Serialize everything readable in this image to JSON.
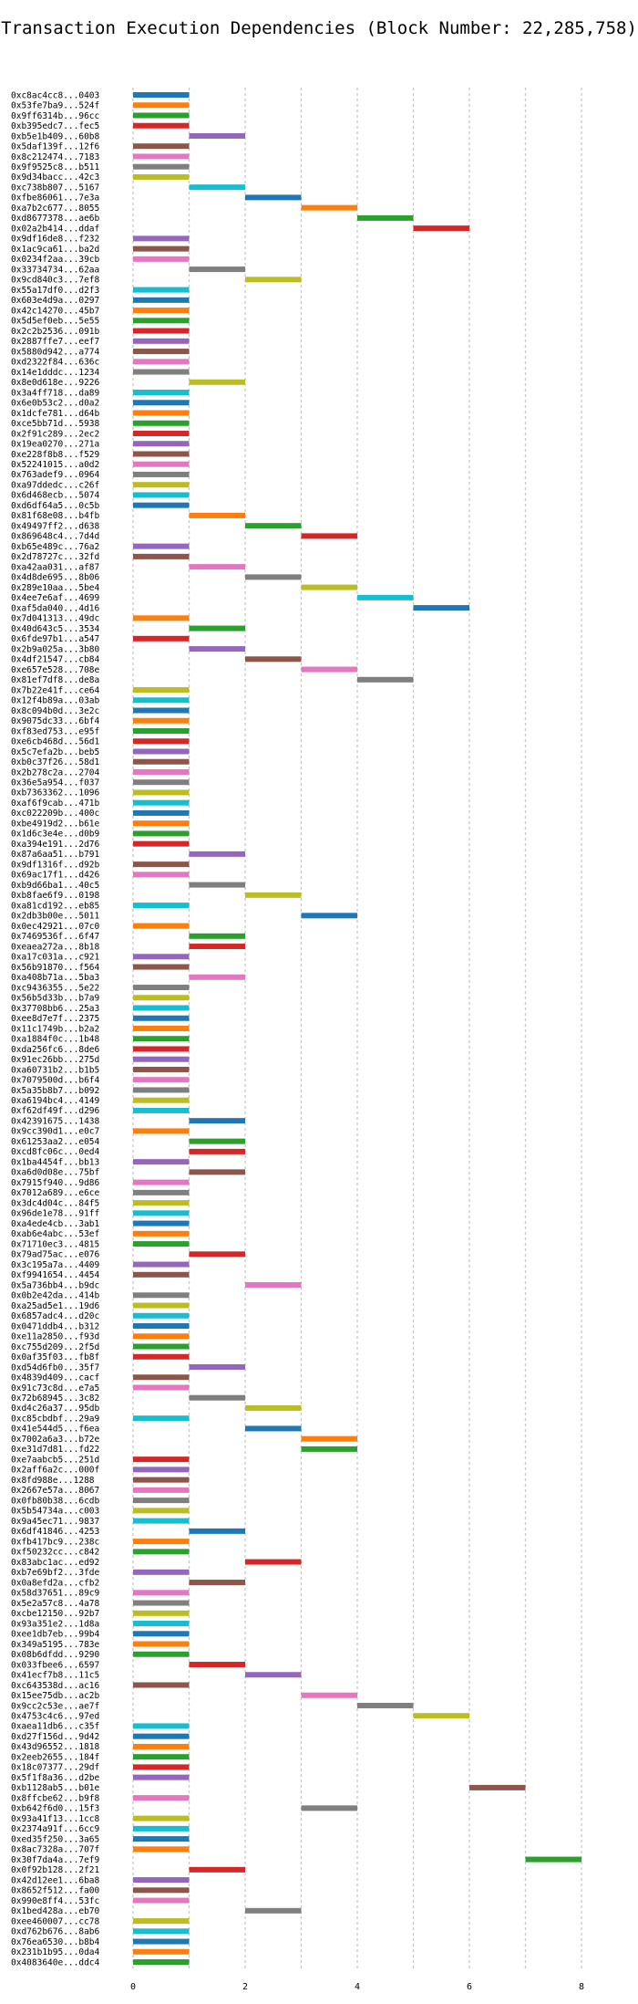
{
  "chart_data": {
    "type": "gantt",
    "title": "Transaction Execution Dependencies (Block Number: 22,285,758)",
    "xlim": [
      0,
      8
    ],
    "xticks": [
      "0",
      "2",
      "4",
      "6",
      "8"
    ],
    "grid": true,
    "colors": [
      "#1f77b4",
      "#ff7f0e",
      "#2ca02c",
      "#d62728",
      "#9467bd",
      "#8c564b",
      "#e377c2",
      "#7f7f7f",
      "#bcbd22",
      "#17becf"
    ],
    "transactions": [
      {
        "label": "0xc8ac4cc8...0403",
        "start": 0,
        "end": 1
      },
      {
        "label": "0x53fe7ba9...524f",
        "start": 0,
        "end": 1
      },
      {
        "label": "0x9ff6314b...96cc",
        "start": 0,
        "end": 1
      },
      {
        "label": "0xb395edc7...fec5",
        "start": 0,
        "end": 1
      },
      {
        "label": "0xb5e1b409...60b8",
        "start": 1,
        "end": 2
      },
      {
        "label": "0x5daf139f...12f6",
        "start": 0,
        "end": 1
      },
      {
        "label": "0x8c212474...7183",
        "start": 0,
        "end": 1
      },
      {
        "label": "0x9f9525c8...b511",
        "start": 0,
        "end": 1
      },
      {
        "label": "0x9d34bacc...42c3",
        "start": 0,
        "end": 1
      },
      {
        "label": "0xc738b807...5167",
        "start": 1,
        "end": 2
      },
      {
        "label": "0xfbe86061...7e3a",
        "start": 2,
        "end": 3
      },
      {
        "label": "0xa7b2c677...8055",
        "start": 3,
        "end": 4
      },
      {
        "label": "0xd8677378...ae6b",
        "start": 4,
        "end": 5
      },
      {
        "label": "0x02a2b414...ddaf",
        "start": 5,
        "end": 6
      },
      {
        "label": "0x9df16de8...f232",
        "start": 0,
        "end": 1
      },
      {
        "label": "0x1ac9ca61...ba2d",
        "start": 0,
        "end": 1
      },
      {
        "label": "0x0234f2aa...39cb",
        "start": 0,
        "end": 1
      },
      {
        "label": "0x33734734...62aa",
        "start": 1,
        "end": 2
      },
      {
        "label": "0x9cd840c3...7ef8",
        "start": 2,
        "end": 3
      },
      {
        "label": "0x55a17df0...d2f3",
        "start": 0,
        "end": 1
      },
      {
        "label": "0x603e4d9a...0297",
        "start": 0,
        "end": 1
      },
      {
        "label": "0x42c14270...45b7",
        "start": 0,
        "end": 1
      },
      {
        "label": "0x5d5ef0eb...5e55",
        "start": 0,
        "end": 1
      },
      {
        "label": "0x2c2b2536...091b",
        "start": 0,
        "end": 1
      },
      {
        "label": "0x2887ffe7...eef7",
        "start": 0,
        "end": 1
      },
      {
        "label": "0x5880d942...a774",
        "start": 0,
        "end": 1
      },
      {
        "label": "0xd2322f84...636c",
        "start": 0,
        "end": 1
      },
      {
        "label": "0x14e1dddc...1234",
        "start": 0,
        "end": 1
      },
      {
        "label": "0x8e0d618e...9226",
        "start": 1,
        "end": 2
      },
      {
        "label": "0x3a4ff718...da89",
        "start": 0,
        "end": 1
      },
      {
        "label": "0x6e0b53c2...d0a2",
        "start": 0,
        "end": 1
      },
      {
        "label": "0x1dcfe781...d64b",
        "start": 0,
        "end": 1
      },
      {
        "label": "0xce5bb71d...5938",
        "start": 0,
        "end": 1
      },
      {
        "label": "0x2f91c289...2ec2",
        "start": 0,
        "end": 1
      },
      {
        "label": "0x19ea0270...271a",
        "start": 0,
        "end": 1
      },
      {
        "label": "0xe228f8b8...f529",
        "start": 0,
        "end": 1
      },
      {
        "label": "0x52241015...a0d2",
        "start": 0,
        "end": 1
      },
      {
        "label": "0x763adef9...0964",
        "start": 0,
        "end": 1
      },
      {
        "label": "0xa97ddedc...c26f",
        "start": 0,
        "end": 1
      },
      {
        "label": "0x6d468ecb...5074",
        "start": 0,
        "end": 1
      },
      {
        "label": "0xd6df64a5...0c5b",
        "start": 0,
        "end": 1
      },
      {
        "label": "0x81f68e08...b4fb",
        "start": 1,
        "end": 2
      },
      {
        "label": "0x49497ff2...d638",
        "start": 2,
        "end": 3
      },
      {
        "label": "0x869648c4...7d4d",
        "start": 3,
        "end": 4
      },
      {
        "label": "0xb65e489c...76a2",
        "start": 0,
        "end": 1
      },
      {
        "label": "0x2d78727c...32fd",
        "start": 0,
        "end": 1
      },
      {
        "label": "0xa42aa031...af87",
        "start": 1,
        "end": 2
      },
      {
        "label": "0x4d8de695...8b06",
        "start": 2,
        "end": 3
      },
      {
        "label": "0x289e10aa...5be4",
        "start": 3,
        "end": 4
      },
      {
        "label": "0x4ee7e6af...4699",
        "start": 4,
        "end": 5
      },
      {
        "label": "0xaf5da040...4d16",
        "start": 5,
        "end": 6
      },
      {
        "label": "0x7d041313...49dc",
        "start": 0,
        "end": 1
      },
      {
        "label": "0x40d643c5...3534",
        "start": 1,
        "end": 2
      },
      {
        "label": "0x6fde97b1...a547",
        "start": 0,
        "end": 1
      },
      {
        "label": "0x2b9a025a...3b80",
        "start": 1,
        "end": 2
      },
      {
        "label": "0x4df21547...cb84",
        "start": 2,
        "end": 3
      },
      {
        "label": "0xe657e528...708e",
        "start": 3,
        "end": 4
      },
      {
        "label": "0x81ef7df8...de8a",
        "start": 4,
        "end": 5
      },
      {
        "label": "0x7b22e41f...ce64",
        "start": 0,
        "end": 1
      },
      {
        "label": "0x12f4b89a...03ab",
        "start": 0,
        "end": 1
      },
      {
        "label": "0x8c094b0d...3e2c",
        "start": 0,
        "end": 1
      },
      {
        "label": "0x9075dc33...6bf4",
        "start": 0,
        "end": 1
      },
      {
        "label": "0xf83ed753...e95f",
        "start": 0,
        "end": 1
      },
      {
        "label": "0xe6cb468d...56d1",
        "start": 0,
        "end": 1
      },
      {
        "label": "0x5c7efa2b...beb5",
        "start": 0,
        "end": 1
      },
      {
        "label": "0xb0c37f26...58d1",
        "start": 0,
        "end": 1
      },
      {
        "label": "0x2b278c2a...2704",
        "start": 0,
        "end": 1
      },
      {
        "label": "0x36e5a954...f037",
        "start": 0,
        "end": 1
      },
      {
        "label": "0xb7363362...1096",
        "start": 0,
        "end": 1
      },
      {
        "label": "0xaf6f9cab...471b",
        "start": 0,
        "end": 1
      },
      {
        "label": "0xc022209b...400c",
        "start": 0,
        "end": 1
      },
      {
        "label": "0xbe4919d2...b61e",
        "start": 0,
        "end": 1
      },
      {
        "label": "0x1d6c3e4e...d0b9",
        "start": 0,
        "end": 1
      },
      {
        "label": "0xa394e191...2d76",
        "start": 0,
        "end": 1
      },
      {
        "label": "0x87a6aa51...b791",
        "start": 1,
        "end": 2
      },
      {
        "label": "0x9df1316f...d92b",
        "start": 0,
        "end": 1
      },
      {
        "label": "0x69ac17f1...d426",
        "start": 0,
        "end": 1
      },
      {
        "label": "0xb9d66ba1...40c5",
        "start": 1,
        "end": 2
      },
      {
        "label": "0xb8fae6f9...0198",
        "start": 2,
        "end": 3
      },
      {
        "label": "0xa81cd192...eb85",
        "start": 0,
        "end": 1
      },
      {
        "label": "0x2db3b00e...5011",
        "start": 3,
        "end": 4
      },
      {
        "label": "0x0ec42921...07c0",
        "start": 0,
        "end": 1
      },
      {
        "label": "0x7469536f...6f47",
        "start": 1,
        "end": 2
      },
      {
        "label": "0xeaea272a...8b18",
        "start": 1,
        "end": 2
      },
      {
        "label": "0xa17c031a...c921",
        "start": 0,
        "end": 1
      },
      {
        "label": "0x56b91870...f564",
        "start": 0,
        "end": 1
      },
      {
        "label": "0xa408b71a...5ba3",
        "start": 1,
        "end": 2
      },
      {
        "label": "0xc9436355...5e22",
        "start": 0,
        "end": 1
      },
      {
        "label": "0x56b5d33b...b7a9",
        "start": 0,
        "end": 1
      },
      {
        "label": "0x37708bb6...25a3",
        "start": 0,
        "end": 1
      },
      {
        "label": "0xee8d7e7f...2375",
        "start": 0,
        "end": 1
      },
      {
        "label": "0x11c1749b...b2a2",
        "start": 0,
        "end": 1
      },
      {
        "label": "0xa1884f0c...1b48",
        "start": 0,
        "end": 1
      },
      {
        "label": "0xda256fc6...8de6",
        "start": 0,
        "end": 1
      },
      {
        "label": "0x91ec26bb...275d",
        "start": 0,
        "end": 1
      },
      {
        "label": "0xa60731b2...b1b5",
        "start": 0,
        "end": 1
      },
      {
        "label": "0x7079500d...b6f4",
        "start": 0,
        "end": 1
      },
      {
        "label": "0x5a35b8b7...b092",
        "start": 0,
        "end": 1
      },
      {
        "label": "0xa6194bc4...4149",
        "start": 0,
        "end": 1
      },
      {
        "label": "0xf62df49f...d296",
        "start": 0,
        "end": 1
      },
      {
        "label": "0x42391675...1438",
        "start": 1,
        "end": 2
      },
      {
        "label": "0x9cc390d1...e0c7",
        "start": 0,
        "end": 1
      },
      {
        "label": "0x61253aa2...e054",
        "start": 1,
        "end": 2
      },
      {
        "label": "0xcd8fc06c...0ed4",
        "start": 1,
        "end": 2
      },
      {
        "label": "0x1ba4454f...bb13",
        "start": 0,
        "end": 1
      },
      {
        "label": "0xa6d0d08e...75bf",
        "start": 1,
        "end": 2
      },
      {
        "label": "0x7915f940...9d86",
        "start": 0,
        "end": 1
      },
      {
        "label": "0x7012a689...e6ce",
        "start": 0,
        "end": 1
      },
      {
        "label": "0x3dc4d04c...84f5",
        "start": 0,
        "end": 1
      },
      {
        "label": "0x96de1e78...91ff",
        "start": 0,
        "end": 1
      },
      {
        "label": "0xa4ede4cb...3ab1",
        "start": 0,
        "end": 1
      },
      {
        "label": "0xab6e4abc...53ef",
        "start": 0,
        "end": 1
      },
      {
        "label": "0x71710ec3...4815",
        "start": 0,
        "end": 1
      },
      {
        "label": "0x79ad75ac...e076",
        "start": 1,
        "end": 2
      },
      {
        "label": "0x3c195a7a...4409",
        "start": 0,
        "end": 1
      },
      {
        "label": "0xf9941654...4454",
        "start": 0,
        "end": 1
      },
      {
        "label": "0x5a736bb4...b9dc",
        "start": 2,
        "end": 3
      },
      {
        "label": "0x0b2e42da...414b",
        "start": 0,
        "end": 1
      },
      {
        "label": "0xa25ad5e1...19d6",
        "start": 0,
        "end": 1
      },
      {
        "label": "0x6857adc4...d20c",
        "start": 0,
        "end": 1
      },
      {
        "label": "0x0471ddb4...b312",
        "start": 0,
        "end": 1
      },
      {
        "label": "0xe11a2850...f93d",
        "start": 0,
        "end": 1
      },
      {
        "label": "0xc755d209...2f5d",
        "start": 0,
        "end": 1
      },
      {
        "label": "0x0af35f03...fb8f",
        "start": 0,
        "end": 1
      },
      {
        "label": "0xd54d6fb0...35f7",
        "start": 1,
        "end": 2
      },
      {
        "label": "0x4839d409...cacf",
        "start": 0,
        "end": 1
      },
      {
        "label": "0x91c73c8d...e7a5",
        "start": 0,
        "end": 1
      },
      {
        "label": "0x72b68945...3c82",
        "start": 1,
        "end": 2
      },
      {
        "label": "0xd4c26a37...95db",
        "start": 2,
        "end": 3
      },
      {
        "label": "0xc85cbdbf...29a9",
        "start": 0,
        "end": 1
      },
      {
        "label": "0x41e544d5...f6ea",
        "start": 2,
        "end": 3
      },
      {
        "label": "0x7002a6a3...b72e",
        "start": 3,
        "end": 4
      },
      {
        "label": "0xe31d7d81...fd22",
        "start": 3,
        "end": 4
      },
      {
        "label": "0xe7aabcb5...251d",
        "start": 0,
        "end": 1
      },
      {
        "label": "0x2aff6a2c...000f",
        "start": 0,
        "end": 1
      },
      {
        "label": "0x8fd988e...1288",
        "start": 0,
        "end": 1
      },
      {
        "label": "0x2667e57a...8067",
        "start": 0,
        "end": 1
      },
      {
        "label": "0x0fb80b38...6cdb",
        "start": 0,
        "end": 1
      },
      {
        "label": "0x5b54734a...c003",
        "start": 0,
        "end": 1
      },
      {
        "label": "0x9a45ec71...9837",
        "start": 0,
        "end": 1
      },
      {
        "label": "0x6df41846...4253",
        "start": 1,
        "end": 2
      },
      {
        "label": "0xfb417bc9...238c",
        "start": 0,
        "end": 1
      },
      {
        "label": "0xf50232cc...c842",
        "start": 0,
        "end": 1
      },
      {
        "label": "0x83abc1ac...ed92",
        "start": 2,
        "end": 3
      },
      {
        "label": "0xb7e69bf2...3fde",
        "start": 0,
        "end": 1
      },
      {
        "label": "0x0a8efd2a...cfb2",
        "start": 1,
        "end": 2
      },
      {
        "label": "0x58d37651...89c9",
        "start": 0,
        "end": 1
      },
      {
        "label": "0x5e2a57c8...4a78",
        "start": 0,
        "end": 1
      },
      {
        "label": "0xcbe12150...92b7",
        "start": 0,
        "end": 1
      },
      {
        "label": "0x93a351e2...1d8a",
        "start": 0,
        "end": 1
      },
      {
        "label": "0xee1db7eb...99b4",
        "start": 0,
        "end": 1
      },
      {
        "label": "0x349a5195...783e",
        "start": 0,
        "end": 1
      },
      {
        "label": "0x08b6dfdd...9290",
        "start": 0,
        "end": 1
      },
      {
        "label": "0x033fbee6...6597",
        "start": 1,
        "end": 2
      },
      {
        "label": "0x41ecf7b8...11c5",
        "start": 2,
        "end": 3
      },
      {
        "label": "0xc643538d...ac16",
        "start": 0,
        "end": 1
      },
      {
        "label": "0x15ee75db...ac2b",
        "start": 3,
        "end": 4
      },
      {
        "label": "0x9cc2c53e...ae7f",
        "start": 4,
        "end": 5
      },
      {
        "label": "0x4753c4c6...97ed",
        "start": 5,
        "end": 6
      },
      {
        "label": "0xaea11db6...c35f",
        "start": 0,
        "end": 1
      },
      {
        "label": "0xd27f156d...9d42",
        "start": 0,
        "end": 1
      },
      {
        "label": "0x43d96552...1818",
        "start": 0,
        "end": 1
      },
      {
        "label": "0x2eeb2655...184f",
        "start": 0,
        "end": 1
      },
      {
        "label": "0x18c07377...29df",
        "start": 0,
        "end": 1
      },
      {
        "label": "0x5f1f8a36...d2be",
        "start": 0,
        "end": 1
      },
      {
        "label": "0xb1128ab5...b01e",
        "start": 6,
        "end": 7
      },
      {
        "label": "0x8ffcbe62...b9f8",
        "start": 0,
        "end": 1
      },
      {
        "label": "0xb642f6d0...15f3",
        "start": 3,
        "end": 4
      },
      {
        "label": "0x93a41f13...1cc8",
        "start": 0,
        "end": 1
      },
      {
        "label": "0x2374a91f...6cc9",
        "start": 0,
        "end": 1
      },
      {
        "label": "0xed35f250...3a65",
        "start": 0,
        "end": 1
      },
      {
        "label": "0x8ac7328a...707f",
        "start": 0,
        "end": 1
      },
      {
        "label": "0x30f7da4a...7ef9",
        "start": 7,
        "end": 8
      },
      {
        "label": "0x0f92b128...2f21",
        "start": 1,
        "end": 2
      },
      {
        "label": "0x42d12ee1...6ba8",
        "start": 0,
        "end": 1
      },
      {
        "label": "0x8652f512...fa00",
        "start": 0,
        "end": 1
      },
      {
        "label": "0x990e8ff4...53fc",
        "start": 0,
        "end": 1
      },
      {
        "label": "0x1bed428a...eb70",
        "start": 2,
        "end": 3
      },
      {
        "label": "0xee460007...cc78",
        "start": 0,
        "end": 1
      },
      {
        "label": "0xd762b676...8ab6",
        "start": 0,
        "end": 1
      },
      {
        "label": "0x76ea6530...b8b4",
        "start": 0,
        "end": 1
      },
      {
        "label": "0x231b1b95...0da4",
        "start": 0,
        "end": 1
      },
      {
        "label": "0x4083640e...ddc4",
        "start": 0,
        "end": 1
      }
    ]
  }
}
